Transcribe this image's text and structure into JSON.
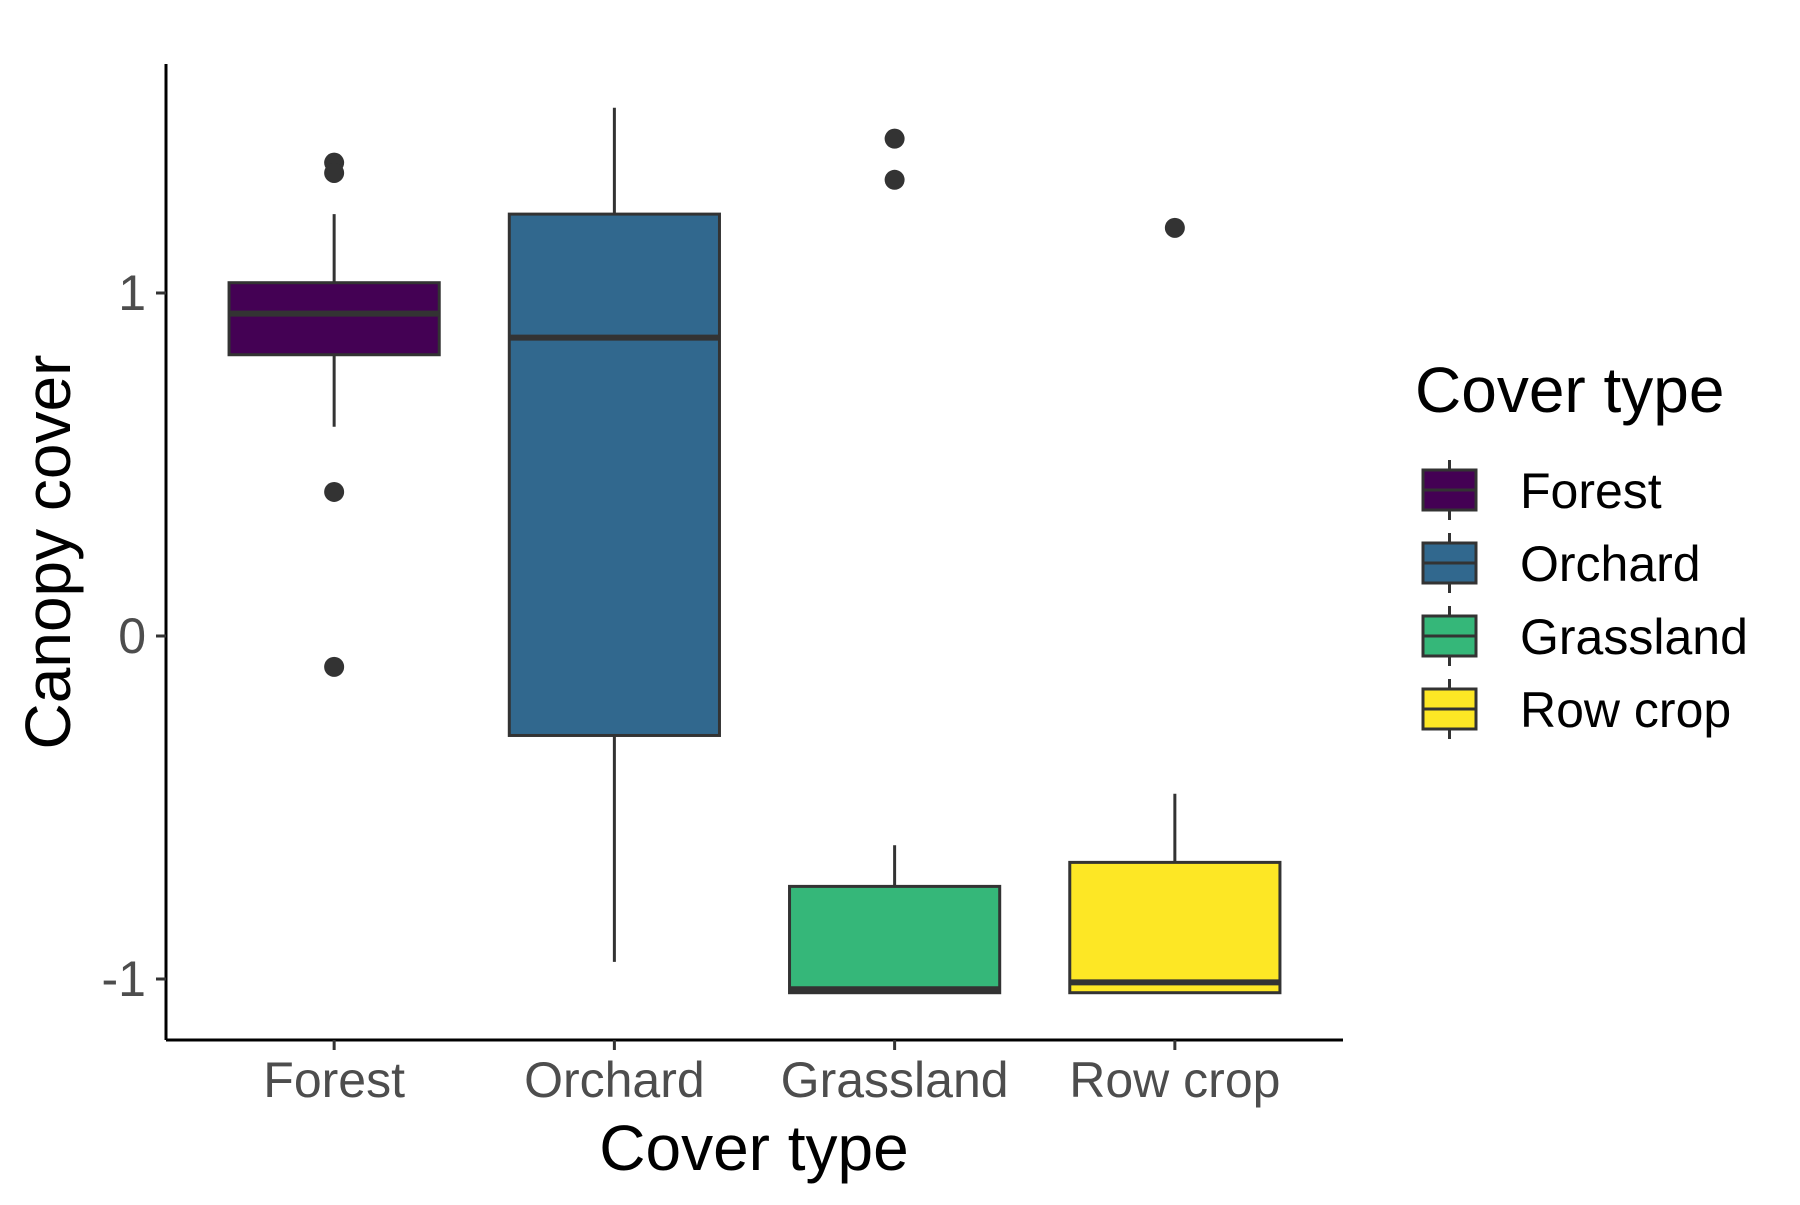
{
  "chart_data": {
    "type": "box",
    "xlabel": "Cover type",
    "ylabel": "Canopy cover",
    "categories": [
      "Forest",
      "Orchard",
      "Grassland",
      "Row crop"
    ],
    "y_ticks": [
      -1,
      0,
      1
    ],
    "y_tick_labels": [
      "-1",
      "0",
      "1"
    ],
    "ylim": [
      -1.17,
      1.67
    ],
    "grid": false,
    "legend": {
      "title": "Cover type",
      "placement": "right",
      "entries": [
        "Forest",
        "Orchard",
        "Grassland",
        "Row crop"
      ]
    },
    "boxes": [
      {
        "category": "Forest",
        "color": "#440154",
        "whisker_low": 0.61,
        "q1": 0.82,
        "median": 0.94,
        "q3": 1.03,
        "whisker_high": 1.23,
        "outliers": [
          1.38,
          1.35,
          0.42,
          -0.09
        ]
      },
      {
        "category": "Orchard",
        "color": "#31688E",
        "whisker_low": -0.95,
        "q1": -0.29,
        "median": 0.87,
        "q3": 1.23,
        "whisker_high": 1.54,
        "outliers": []
      },
      {
        "category": "Grassland",
        "color": "#35B779",
        "whisker_low": -1.04,
        "q1": -1.04,
        "median": -1.03,
        "q3": -0.73,
        "whisker_high": -0.61,
        "outliers": [
          1.45,
          1.33
        ]
      },
      {
        "category": "Row crop",
        "color": "#FDE725",
        "whisker_low": -1.04,
        "q1": -1.04,
        "median": -1.01,
        "q3": -0.66,
        "whisker_high": -0.46,
        "outliers": [
          1.19
        ]
      }
    ]
  }
}
